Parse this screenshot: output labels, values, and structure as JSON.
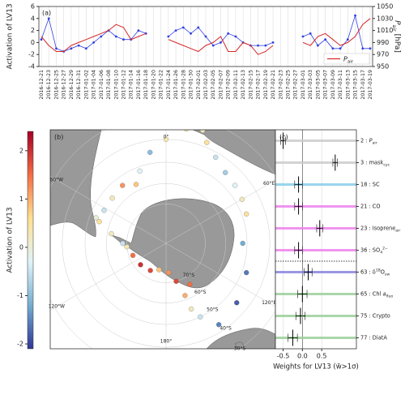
{
  "chart_data": [
    {
      "type": "line",
      "label": "(a)",
      "ylabel": "Activation of LV13",
      "y2label": [
        {
          "t": "P",
          "s": "i"
        },
        {
          "t": "air",
          "s": "sub"
        },
        {
          "t": " [hPa]"
        }
      ],
      "categories": [
        "2016-12-21",
        "2016-12-23",
        "2016-12-25",
        "2016-12-27",
        "2016-12-29",
        "2016-12-31",
        "2017-01-02",
        "2017-01-04",
        "2017-01-06",
        "2017-01-08",
        "2017-01-10",
        "2017-01-12",
        "2017-01-14",
        "2017-01-16",
        "2017-01-18",
        "2017-01-20",
        "2017-01-22",
        "2017-01-24",
        "2017-01-26",
        "2017-01-28",
        "2017-01-30",
        "2017-02-01",
        "2017-02-03",
        "2017-02-05",
        "2017-02-07",
        "2017-02-09",
        "2017-02-11",
        "2017-02-13",
        "2017-02-15",
        "2017-02-17",
        "2017-02-19",
        "2017-02-21",
        "2017-02-23",
        "2017-02-25",
        "2017-02-27",
        "2017-03-01",
        "2017-03-03",
        "2017-03-05",
        "2017-03-07",
        "2017-03-09",
        "2017-03-11",
        "2017-03-13",
        "2017-03-15",
        "2017-03-17",
        "2017-03-19"
      ],
      "ylim": [
        -4,
        6
      ],
      "yticks": [
        -4,
        -2,
        0,
        2,
        4,
        6
      ],
      "y2lim": [
        950,
        1050
      ],
      "y2ticks": [
        950,
        970,
        990,
        1010,
        1030,
        1050
      ],
      "grid": true,
      "legend": "lower right",
      "series": [
        {
          "color": "#3040e0",
          "values": [
            0.5,
            4,
            -1,
            -1.5,
            -1,
            -0.5,
            -1,
            0,
            1,
            2,
            1,
            0.5,
            0.5,
            2,
            1.5,
            null,
            null,
            1,
            2,
            2.5,
            1.5,
            2.5,
            1,
            -0.5,
            0,
            1.5,
            1,
            0,
            -0.5,
            -0.5,
            -0.5,
            0,
            null,
            null,
            null,
            1,
            1.5,
            -0.5,
            0.5,
            -1,
            -1,
            0.5,
            4.5,
            -1,
            -1
          ]
        },
        {
          "name": [
            {
              "t": "P",
              "s": "i"
            },
            {
              "t": "air",
              "s": "sub"
            }
          ],
          "color": "#d62728",
          "axis": "y2",
          "values": [
            1000,
            985,
            975,
            975,
            985,
            990,
            995,
            1000,
            1005,
            1010,
            1020,
            1015,
            995,
            1000,
            1005,
            null,
            null,
            995,
            990,
            985,
            980,
            975,
            985,
            990,
            1000,
            975,
            975,
            990,
            985,
            970,
            975,
            985,
            null,
            null,
            null,
            990,
            985,
            1000,
            1005,
            995,
            985,
            990,
            1000,
            1020,
            1030
          ]
        }
      ]
    },
    {
      "type": "map",
      "label": "(b)",
      "colorbar": {
        "label": "Activation of LV13",
        "lim": [
          -2.1,
          2.4
        ],
        "ticks": [
          -2,
          -1,
          0,
          1,
          2
        ],
        "colormap": [
          "#313695",
          "#74add1",
          "#e0f3f8",
          "#fee090",
          "#f46d43",
          "#a50026"
        ]
      },
      "lonticks": [
        {
          "value": 0,
          "label": "0°"
        },
        {
          "value": 60,
          "label": "60°E"
        },
        {
          "value": 120,
          "label": "120°E"
        },
        {
          "value": 180,
          "label": "180°"
        },
        {
          "value": -120,
          "label": "120°W"
        },
        {
          "value": -60,
          "label": "60°W"
        }
      ],
      "latticks": [
        {
          "value": -70,
          "label": "70°S"
        },
        {
          "value": -60,
          "label": "60°S"
        },
        {
          "value": -50,
          "label": "50°S"
        },
        {
          "value": -40,
          "label": "40°S"
        },
        {
          "value": -30,
          "label": "30°S"
        }
      ],
      "track": [
        {
          "lon": 18,
          "lat": -34,
          "value": 0.3
        },
        {
          "lon": 22,
          "lat": -38,
          "value": 0.5
        },
        {
          "lon": 30,
          "lat": -42,
          "value": -0.5
        },
        {
          "lon": 40,
          "lat": -45,
          "value": -0.8
        },
        {
          "lon": 50,
          "lat": -46,
          "value": -0.3
        },
        {
          "lon": 60,
          "lat": -47,
          "value": 0.2
        },
        {
          "lon": 70,
          "lat": -48,
          "value": 0.5
        },
        {
          "lon": 90,
          "lat": -52,
          "value": -1.2
        },
        {
          "lon": 110,
          "lat": -48,
          "value": -1.6
        },
        {
          "lon": 130,
          "lat": -45,
          "value": -1.8
        },
        {
          "lon": 147,
          "lat": -43,
          "value": -1.5
        },
        {
          "lon": 155,
          "lat": -50,
          "value": -0.5
        },
        {
          "lon": 159,
          "lat": -55,
          "value": 0.2
        },
        {
          "lon": 160,
          "lat": -62,
          "value": 1.0
        },
        {
          "lon": 150,
          "lat": -66,
          "value": 1.5
        },
        {
          "lon": 165,
          "lat": -70,
          "value": 1.8
        },
        {
          "lon": 175,
          "lat": -75,
          "value": 1.2
        },
        {
          "lon": -165,
          "lat": -76,
          "value": 0.8
        },
        {
          "lon": -150,
          "lat": -74,
          "value": 1.8
        },
        {
          "lon": -130,
          "lat": -73,
          "value": 2.0
        },
        {
          "lon": -110,
          "lat": -72,
          "value": 1.5
        },
        {
          "lon": -95,
          "lat": -70,
          "value": 0.3
        },
        {
          "lon": -90,
          "lat": -68,
          "value": -0.5
        },
        {
          "lon": -80,
          "lat": -62,
          "value": 0.2
        },
        {
          "lon": -72,
          "lat": -55,
          "value": 0.5
        },
        {
          "lon": -70,
          "lat": -53,
          "value": 0.0
        },
        {
          "lon": -62,
          "lat": -55,
          "value": -0.5
        },
        {
          "lon": -50,
          "lat": -55,
          "value": 0.2
        },
        {
          "lon": -37,
          "lat": -54,
          "value": 1.2
        },
        {
          "lon": -27,
          "lat": -57,
          "value": 0.8
        },
        {
          "lon": -20,
          "lat": -52,
          "value": -0.3
        },
        {
          "lon": -10,
          "lat": -45,
          "value": -1.0
        },
        {
          "lon": 0,
          "lat": -40,
          "value": 0.3
        },
        {
          "lon": 10,
          "lat": -35,
          "value": 0.5
        },
        {
          "lon": 18,
          "lat": -34,
          "value": 0.2
        }
      ]
    },
    {
      "type": "errorbar_h",
      "label": "(c)",
      "xlabel": "Weights for LV13 (w̄>1σ)",
      "xlim": [
        -0.7,
        1.4
      ],
      "xticks": [
        -0.5,
        {
          "value": 0,
          "label": "0.0"
        },
        0.5
      ],
      "features": [
        {
          "label": [
            {
              "t": "2 : "
            },
            {
              "t": "P",
              "s": "i"
            },
            {
              "t": "air",
              "s": "sub"
            }
          ],
          "color": "#cccccc",
          "weight": -0.5,
          "err": 0.06
        },
        {
          "label": [
            {
              "t": "3 : mask"
            },
            {
              "t": "cyc",
              "s": "sub"
            }
          ],
          "color": "#cccccc",
          "weight": 0.85,
          "err": 0.06
        },
        {
          "label": [
            {
              "t": "18 : SC"
            }
          ],
          "color": "#87ceeb",
          "weight": -0.1,
          "err": 0.1
        },
        {
          "label": [
            {
              "t": "21 : CO"
            }
          ],
          "color": "#ee82ee",
          "weight": -0.1,
          "err": 0.1
        },
        {
          "label": [
            {
              "t": "23 : Isoprene"
            },
            {
              "t": "air",
              "s": "sub"
            }
          ],
          "color": "#ee82ee",
          "weight": 0.45,
          "err": 0.08
        },
        {
          "label": [
            {
              "t": "36 : SO"
            },
            {
              "t": "4",
              "s": "sub"
            },
            {
              "t": "2−",
              "s": "sup"
            }
          ],
          "color": "#ee82ee",
          "weight": -0.1,
          "err": 0.1
        },
        {
          "label": [
            {
              "t": "63 : δ"
            },
            {
              "t": "18",
              "s": "sup"
            },
            {
              "t": "O"
            },
            {
              "t": "sw",
              "s": "sub"
            }
          ],
          "color": "#8a86e0",
          "weight": 0.15,
          "err": 0.1
        },
        {
          "label": [
            {
              "t": "65 : Chl "
            },
            {
              "t": "a",
              "s": "i"
            },
            {
              "t": "fluo",
              "s": "sub"
            }
          ],
          "color": "#9ccf9c",
          "weight": 0.0,
          "err": 0.12
        },
        {
          "label": [
            {
              "t": "75 : Crypto"
            }
          ],
          "color": "#9ccf9c",
          "weight": -0.05,
          "err": 0.12
        },
        {
          "label": [
            {
              "t": "77 : DiatA"
            }
          ],
          "color": "#9ccf9c",
          "weight": -0.25,
          "err": 0.12
        }
      ]
    }
  ]
}
